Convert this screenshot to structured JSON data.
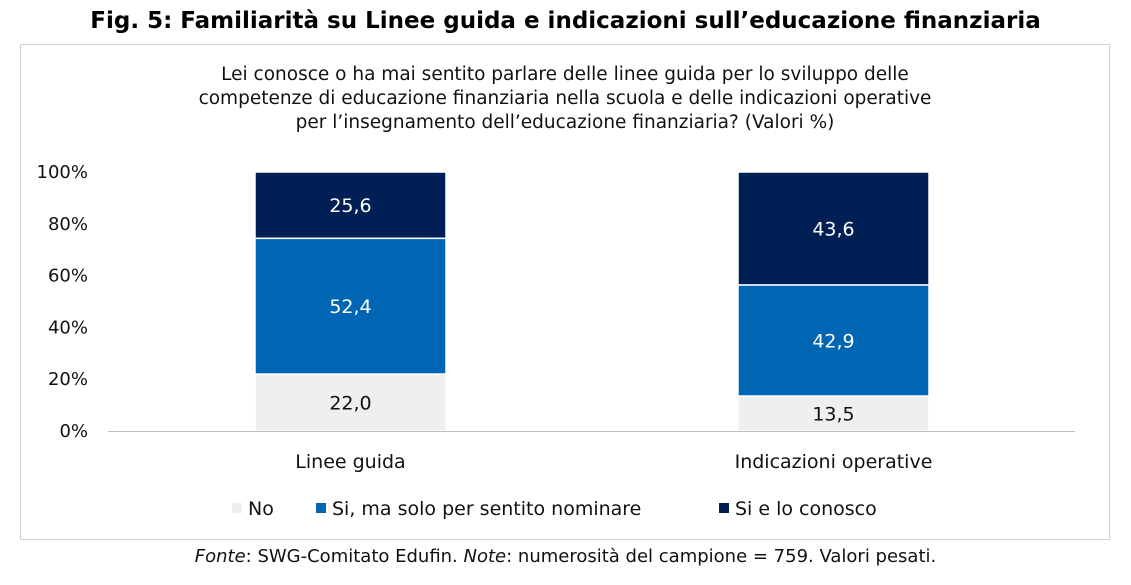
{
  "title": "Fig. 5: Familiarità su Linee guida e indicazioni sull’educazione finanziaria",
  "subtitle_lines": [
    "Lei conosce o ha mai sentito parlare delle linee guida per lo sviluppo delle",
    "competenze di educazione finanziaria nella scuola e delle indicazioni operative",
    "per l’insegnamento dell’educazione finanziaria? (Valori %)"
  ],
  "note": {
    "fonte_label": "Fonte",
    "fonte_text": ": SWG-Comitato Edufin. ",
    "note_label": "Note",
    "note_text": ": numerosità del campione = 759. Valori pesati."
  },
  "chart_data": {
    "type": "bar",
    "stacked": true,
    "categories": [
      "Linee guida",
      "Indicazioni operative"
    ],
    "series": [
      {
        "name": "No",
        "values": [
          22.0,
          13.5
        ],
        "labels": [
          "22,0",
          "13,5"
        ],
        "color": "#efefef",
        "label_color": "#111111"
      },
      {
        "name": "Si, ma solo per sentito nominare",
        "values": [
          52.4,
          42.9
        ],
        "labels": [
          "52,4",
          "42,9"
        ],
        "color": "#0066b3",
        "label_color": "#ffffff"
      },
      {
        "name": "Si e lo conosco",
        "values": [
          25.6,
          43.6
        ],
        "labels": [
          "25,6",
          "43,6"
        ],
        "color": "#002055",
        "label_color": "#ffffff"
      }
    ],
    "ylim": [
      0,
      100
    ],
    "yticks": [
      "0%",
      "20%",
      "40%",
      "60%",
      "80%",
      "100%"
    ],
    "grid": false,
    "legend": "bottom"
  }
}
